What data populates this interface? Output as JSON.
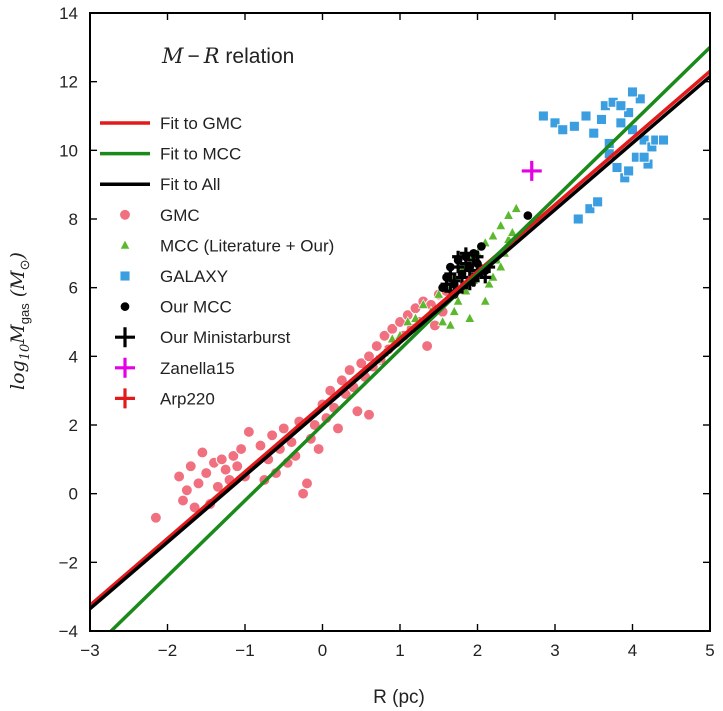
{
  "chart_data": {
    "type": "scatter",
    "title": "",
    "xlabel": "R (pc)",
    "ylabel": {
      "base": "log",
      "sub": "10",
      "var": "M",
      "var_sub": "gas",
      "unit": "(M",
      "unit_sub": "⊙",
      "close": ")"
    },
    "xlim": [
      -3,
      5
    ],
    "ylim": [
      -4,
      14
    ],
    "xticks": [
      -3,
      -2,
      -1,
      0,
      1,
      2,
      3,
      4,
      5
    ],
    "yticks": [
      -4,
      -2,
      0,
      2,
      4,
      6,
      8,
      10,
      12,
      14
    ],
    "xtick_labels": [
      "−3",
      "−2",
      "−1",
      "0",
      "1",
      "2",
      "3",
      "4",
      "5"
    ],
    "ytick_labels": [
      "−4",
      "−2",
      "0",
      "2",
      "4",
      "6",
      "8",
      "10",
      "12",
      "14"
    ],
    "grid": false,
    "legend_placement": "top-left",
    "legend_title": {
      "lhs": "M",
      "op": "−",
      "rhs": "R",
      "text": " relation"
    },
    "series": [
      {
        "name": "Fit to GMC",
        "kind": "line",
        "color": "#e31a1c",
        "x": [
          -3,
          5
        ],
        "y": [
          -3.25,
          12.3
        ]
      },
      {
        "name": "Fit to MCC",
        "kind": "line",
        "color": "#1a8a1a",
        "x": [
          -3,
          5
        ],
        "y": [
          -4.6,
          13.0
        ]
      },
      {
        "name": "Fit to All",
        "kind": "line",
        "color": "#000000",
        "x": [
          -3,
          5
        ],
        "y": [
          -3.35,
          12.15
        ]
      },
      {
        "name": "GMC",
        "kind": "scatter",
        "marker": "circle",
        "color": "#f07080",
        "points": [
          [
            -2.15,
            -0.7
          ],
          [
            -1.85,
            0.5
          ],
          [
            -1.8,
            -0.2
          ],
          [
            -1.75,
            0.1
          ],
          [
            -1.7,
            0.8
          ],
          [
            -1.65,
            -0.4
          ],
          [
            -1.6,
            0.3
          ],
          [
            -1.55,
            1.2
          ],
          [
            -1.5,
            0.6
          ],
          [
            -1.45,
            -0.3
          ],
          [
            -1.4,
            0.9
          ],
          [
            -1.35,
            0.2
          ],
          [
            -1.3,
            1.0
          ],
          [
            -1.25,
            0.7
          ],
          [
            -1.2,
            0.4
          ],
          [
            -1.15,
            1.1
          ],
          [
            -1.1,
            0.8
          ],
          [
            -1.05,
            1.3
          ],
          [
            -1.0,
            0.5
          ],
          [
            -0.95,
            1.8
          ],
          [
            -0.8,
            1.4
          ],
          [
            -0.75,
            0.4
          ],
          [
            -0.7,
            1.0
          ],
          [
            -0.65,
            1.7
          ],
          [
            -0.6,
            0.6
          ],
          [
            -0.55,
            1.3
          ],
          [
            -0.5,
            1.9
          ],
          [
            -0.45,
            0.9
          ],
          [
            -0.4,
            1.5
          ],
          [
            -0.35,
            1.1
          ],
          [
            -0.3,
            2.1
          ],
          [
            -0.25,
            0.0
          ],
          [
            -0.2,
            0.3
          ],
          [
            -0.15,
            1.6
          ],
          [
            -0.1,
            2.0
          ],
          [
            -0.05,
            1.3
          ],
          [
            0.0,
            2.6
          ],
          [
            0.05,
            2.2
          ],
          [
            0.1,
            3.0
          ],
          [
            0.15,
            2.5
          ],
          [
            0.2,
            1.9
          ],
          [
            0.25,
            3.3
          ],
          [
            0.3,
            2.9
          ],
          [
            0.35,
            3.6
          ],
          [
            0.4,
            3.1
          ],
          [
            0.45,
            2.4
          ],
          [
            0.5,
            3.8
          ],
          [
            0.55,
            3.4
          ],
          [
            0.6,
            4.0
          ],
          [
            0.65,
            3.7
          ],
          [
            0.7,
            4.3
          ],
          [
            0.75,
            3.9
          ],
          [
            0.8,
            4.6
          ],
          [
            0.85,
            4.2
          ],
          [
            0.9,
            4.8
          ],
          [
            0.95,
            4.4
          ],
          [
            1.0,
            5.0
          ],
          [
            1.05,
            4.6
          ],
          [
            1.1,
            5.2
          ],
          [
            1.15,
            4.8
          ],
          [
            1.2,
            5.4
          ],
          [
            1.25,
            5.0
          ],
          [
            1.3,
            5.6
          ],
          [
            1.35,
            4.3
          ],
          [
            1.4,
            5.5
          ],
          [
            1.45,
            4.9
          ],
          [
            1.5,
            5.8
          ],
          [
            1.55,
            5.3
          ],
          [
            1.6,
            5.9
          ],
          [
            0.6,
            2.3
          ]
        ]
      },
      {
        "name": "MCC (Literature + Our)",
        "kind": "scatter",
        "marker": "triangle",
        "color": "#5cb82e",
        "points": [
          [
            0.7,
            3.9
          ],
          [
            0.8,
            4.1
          ],
          [
            0.9,
            4.5
          ],
          [
            1.0,
            4.6
          ],
          [
            1.1,
            5.0
          ],
          [
            1.2,
            5.1
          ],
          [
            1.3,
            5.5
          ],
          [
            1.4,
            5.3
          ],
          [
            1.5,
            5.8
          ],
          [
            1.55,
            5.0
          ],
          [
            1.6,
            6.0
          ],
          [
            1.65,
            4.9
          ],
          [
            1.7,
            6.3
          ],
          [
            1.75,
            5.6
          ],
          [
            1.8,
            6.6
          ],
          [
            1.85,
            5.9
          ],
          [
            1.9,
            6.9
          ],
          [
            1.95,
            6.2
          ],
          [
            2.0,
            7.0
          ],
          [
            2.05,
            6.5
          ],
          [
            2.1,
            7.3
          ],
          [
            2.15,
            6.1
          ],
          [
            2.2,
            7.5
          ],
          [
            2.25,
            6.8
          ],
          [
            2.3,
            7.8
          ],
          [
            2.35,
            7.0
          ],
          [
            2.4,
            8.1
          ],
          [
            2.5,
            8.3
          ],
          [
            2.1,
            5.6
          ],
          [
            1.9,
            5.1
          ],
          [
            2.2,
            6.3
          ],
          [
            2.4,
            7.4
          ],
          [
            1.7,
            5.3
          ],
          [
            2.3,
            6.6
          ],
          [
            2.45,
            7.6
          ]
        ]
      },
      {
        "name": "GALAXY",
        "kind": "scatter",
        "marker": "square",
        "color": "#3a9ee0",
        "points": [
          [
            2.85,
            11.0
          ],
          [
            3.0,
            10.8
          ],
          [
            3.1,
            10.6
          ],
          [
            3.25,
            10.7
          ],
          [
            3.3,
            8.0
          ],
          [
            3.4,
            11.0
          ],
          [
            3.45,
            8.3
          ],
          [
            3.5,
            10.5
          ],
          [
            3.55,
            8.5
          ],
          [
            3.6,
            10.9
          ],
          [
            3.65,
            11.3
          ],
          [
            3.7,
            10.2
          ],
          [
            3.75,
            11.4
          ],
          [
            3.8,
            9.5
          ],
          [
            3.85,
            10.8
          ],
          [
            3.9,
            9.2
          ],
          [
            3.95,
            11.1
          ],
          [
            4.0,
            10.6
          ],
          [
            4.05,
            9.8
          ],
          [
            4.1,
            11.5
          ],
          [
            4.15,
            10.3
          ],
          [
            4.2,
            9.6
          ],
          [
            4.25,
            10.1
          ],
          [
            4.3,
            10.3
          ],
          [
            4.4,
            10.3
          ],
          [
            4.0,
            11.7
          ],
          [
            3.7,
            9.9
          ],
          [
            3.95,
            9.4
          ],
          [
            3.85,
            11.3
          ],
          [
            4.15,
            9.8
          ]
        ]
      },
      {
        "name": "Our MCC",
        "kind": "scatter",
        "marker": "dot",
        "color": "#000000",
        "points": [
          [
            1.55,
            6.0
          ],
          [
            1.6,
            6.3
          ],
          [
            1.65,
            6.6
          ],
          [
            1.7,
            6.1
          ],
          [
            1.75,
            6.8
          ],
          [
            1.8,
            6.4
          ],
          [
            1.85,
            6.9
          ],
          [
            1.9,
            6.2
          ],
          [
            1.95,
            7.0
          ],
          [
            2.0,
            6.7
          ],
          [
            2.05,
            7.2
          ],
          [
            2.1,
            6.5
          ],
          [
            2.65,
            8.1
          ],
          [
            1.7,
            5.8
          ],
          [
            1.9,
            6.6
          ]
        ]
      },
      {
        "name": "Our Ministarburst",
        "kind": "scatter",
        "marker": "plus",
        "color": "#000000",
        "points": [
          [
            1.6,
            6.1
          ],
          [
            1.65,
            6.4
          ],
          [
            1.7,
            6.2
          ],
          [
            1.75,
            6.6
          ],
          [
            1.8,
            6.3
          ],
          [
            1.85,
            6.7
          ],
          [
            1.9,
            6.5
          ],
          [
            1.95,
            6.8
          ],
          [
            2.0,
            6.4
          ],
          [
            1.7,
            5.9
          ],
          [
            1.8,
            6.0
          ],
          [
            1.9,
            6.1
          ],
          [
            2.05,
            6.5
          ],
          [
            2.1,
            6.3
          ],
          [
            1.75,
            6.9
          ],
          [
            1.85,
            7.0
          ],
          [
            1.95,
            6.2
          ],
          [
            1.65,
            5.9
          ],
          [
            2.0,
            6.9
          ],
          [
            2.15,
            6.6
          ]
        ]
      },
      {
        "name": "Zanella15",
        "kind": "scatter",
        "marker": "plus",
        "color": "#e600e6",
        "points": [
          [
            2.7,
            9.4
          ]
        ]
      },
      {
        "name": "Arp220",
        "kind": "scatter",
        "marker": "plus",
        "color": "#e31a1c",
        "points": []
      }
    ]
  }
}
